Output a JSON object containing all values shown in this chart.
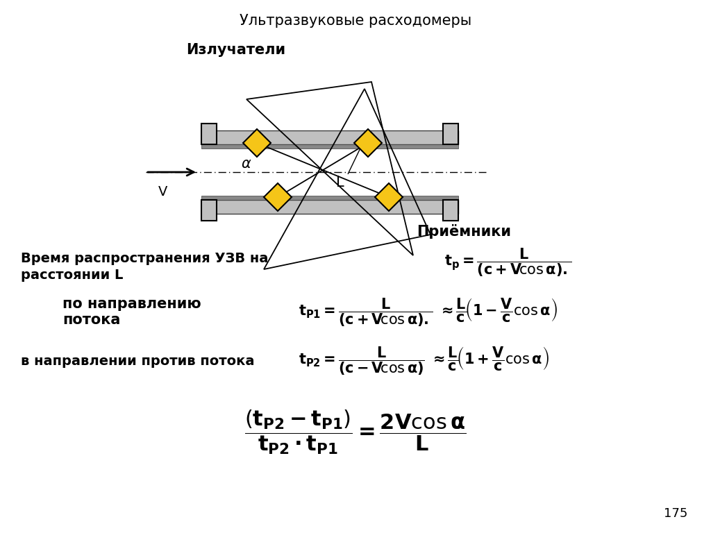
{
  "title": "Ультразвуковые расходомеры",
  "label_emitters": "Излучатели",
  "label_receivers": "Приёмники",
  "label_v": "V",
  "label_alpha": "α",
  "label_L": "L",
  "text1": "Время распространения УЗВ на",
  "text2": "расстоянии L",
  "text3": "по направлению",
  "text4": "потока",
  "text5": "в направлении против потока",
  "page_number": "175",
  "bg_color": "#ffffff",
  "pipe_color": "#c0c0c0",
  "pipe_border_color": "#404040",
  "sensor_color": "#f5c518",
  "sensor_border_color": "#000000"
}
